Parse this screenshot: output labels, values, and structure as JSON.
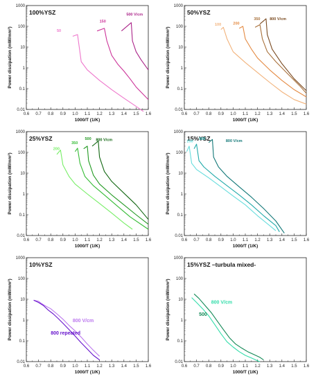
{
  "chart_data": [
    {
      "type": "line",
      "title": "100%YSZ",
      "xlabel": "1000/T (1/K)",
      "ylabel": "Power dissipation (mW/mm³)",
      "xlim": [
        0.6,
        1.6
      ],
      "ylim": [
        0.01,
        1000
      ],
      "yscale": "log",
      "xticks": [
        "0.6",
        "0.7",
        "0.8",
        "0.9",
        "1.0",
        "1.1",
        "1.2",
        "1.3",
        "1.4",
        "1.5",
        "1.6"
      ],
      "yticks": [
        "0.01",
        "0.1",
        "1",
        "10",
        "100",
        "1000"
      ],
      "colors": [
        "#ee77cc",
        "#cc3399",
        "#aa2288"
      ],
      "series": [
        {
          "name": "50",
          "x": [
            0.98,
            1.02,
            1.05,
            1.1,
            1.2,
            1.3,
            1.4,
            1.5,
            1.56
          ],
          "y": [
            33,
            40,
            2.0,
            0.8,
            0.25,
            0.09,
            0.035,
            0.014,
            0.008
          ]
        },
        {
          "name": "150",
          "x": [
            1.18,
            1.24,
            1.26,
            1.3,
            1.35,
            1.4,
            1.45,
            1.5,
            1.6
          ],
          "y": [
            60,
            80,
            20,
            4,
            1.5,
            0.7,
            0.3,
            0.12,
            0.03
          ]
        },
        {
          "name": "500 V/cm",
          "x": [
            1.38,
            1.46,
            1.47,
            1.5,
            1.54,
            1.6
          ],
          "y": [
            60,
            150,
            20,
            6,
            2.5,
            0.8
          ]
        }
      ],
      "annotations": [
        {
          "text": "50",
          "x": 0.85,
          "y": 55
        },
        {
          "text": "150",
          "x": 1.2,
          "y": 150
        },
        {
          "text": "500 V/cm",
          "x": 1.42,
          "y": 330
        }
      ]
    },
    {
      "type": "line",
      "title": "50%YSZ",
      "xlabel": "1000/T (1/K)",
      "ylabel": "Power dissipation (mW/mm³)",
      "xlim": [
        0.6,
        1.6
      ],
      "ylim": [
        0.01,
        1000
      ],
      "yscale": "log",
      "xticks": [
        "0.6",
        "0.7",
        "0.8",
        "0.9",
        "1.0",
        "1.1",
        "1.2",
        "1.3",
        "1.4",
        "1.5",
        "1.6"
      ],
      "yticks": [
        "0.01",
        "0.1",
        "1",
        "10",
        "100",
        "1000"
      ],
      "colors": [
        "#f2b27a",
        "#e48a42",
        "#a8703a",
        "#7a4a20"
      ],
      "series": [
        {
          "name": "100",
          "x": [
            0.9,
            0.92,
            0.95,
            1.0,
            1.1,
            1.2,
            1.3,
            1.4,
            1.5,
            1.6
          ],
          "y": [
            70,
            90,
            25,
            6,
            1.8,
            0.6,
            0.2,
            0.07,
            0.03,
            0.018
          ]
        },
        {
          "name": "200",
          "x": [
            1.05,
            1.08,
            1.1,
            1.15,
            1.2,
            1.3,
            1.4,
            1.5,
            1.6
          ],
          "y": [
            80,
            100,
            25,
            8,
            3,
            0.8,
            0.25,
            0.09,
            0.04
          ]
        },
        {
          "name": "350",
          "x": [
            1.18,
            1.22,
            1.24,
            1.28,
            1.35,
            1.45,
            1.55,
            1.6
          ],
          "y": [
            90,
            120,
            25,
            6,
            2,
            0.5,
            0.13,
            0.06
          ]
        },
        {
          "name": "800 V/cm",
          "x": [
            1.22,
            1.27,
            1.28,
            1.32,
            1.4,
            1.5,
            1.6
          ],
          "y": [
            130,
            230,
            40,
            8,
            1.6,
            0.3,
            0.08
          ]
        }
      ],
      "annotations": [
        {
          "text": "100",
          "x": 0.85,
          "y": 110
        },
        {
          "text": "200",
          "x": 1.0,
          "y": 120
        },
        {
          "text": "350",
          "x": 1.17,
          "y": 200
        },
        {
          "text": "800 V/cm",
          "x": 1.3,
          "y": 200
        }
      ]
    },
    {
      "type": "line",
      "title": "25%YSZ",
      "xlabel": "1000/T (1/K)",
      "ylabel": "Power dissipation (mW/mm³)",
      "xlim": [
        0.6,
        1.6
      ],
      "ylim": [
        0.01,
        1000
      ],
      "yscale": "log",
      "xticks": [
        "0.6",
        "0.7",
        "0.8",
        "0.9",
        "1.0",
        "1.1",
        "1.2",
        "1.3",
        "1.4",
        "1.5",
        "1.6"
      ],
      "yticks": [
        "0.01",
        "0.1",
        "1",
        "10",
        "100",
        "1000"
      ],
      "colors": [
        "#77ee66",
        "#33bb33",
        "#229922",
        "#116611"
      ],
      "series": [
        {
          "name": "200",
          "x": [
            0.85,
            0.88,
            0.9,
            0.95,
            1.0,
            1.1,
            1.2,
            1.3,
            1.4,
            1.47
          ],
          "y": [
            80,
            130,
            25,
            7,
            3,
            1,
            0.35,
            0.12,
            0.04,
            0.02
          ]
        },
        {
          "name": "350",
          "x": [
            1.0,
            1.02,
            1.04,
            1.08,
            1.15,
            1.25,
            1.35,
            1.45,
            1.6
          ],
          "y": [
            110,
            160,
            30,
            7,
            2.5,
            0.8,
            0.25,
            0.08,
            0.02
          ]
        },
        {
          "name": "500",
          "x": [
            1.07,
            1.1,
            1.11,
            1.15,
            1.2,
            1.3,
            1.4,
            1.5,
            1.6
          ],
          "y": [
            150,
            200,
            40,
            8,
            3,
            0.9,
            0.3,
            0.1,
            0.035
          ]
        },
        {
          "name": "800 V/cm",
          "x": [
            1.14,
            1.19,
            1.2,
            1.24,
            1.3,
            1.4,
            1.5,
            1.6
          ],
          "y": [
            200,
            350,
            60,
            12,
            4,
            1.1,
            0.3,
            0.06
          ]
        }
      ],
      "annotations": [
        {
          "text": "200",
          "x": 0.82,
          "y": 130
        },
        {
          "text": "350",
          "x": 0.97,
          "y": 250
        },
        {
          "text": "500",
          "x": 1.08,
          "y": 400
        },
        {
          "text": "800 V/cm",
          "x": 1.17,
          "y": 350
        }
      ]
    },
    {
      "type": "line",
      "title": "15%YSZ",
      "xlabel": "1000/T (1/K)",
      "ylabel": "Power dissipation (mW/mm³)",
      "xlim": [
        0.6,
        1.6
      ],
      "ylim": [
        0.01,
        1000
      ],
      "yscale": "log",
      "xticks": [
        "0.6",
        "0.7",
        "0.8",
        "0.9",
        "1.0",
        "1.1",
        "1.2",
        "1.3",
        "1.4",
        "1.5",
        "1.6"
      ],
      "yticks": [
        "0.01",
        "0.1",
        "1",
        "10",
        "100",
        "1000"
      ],
      "colors": [
        "#66dddd",
        "#22aaaa",
        "#117777"
      ],
      "series": [
        {
          "name": "250",
          "x": [
            0.62,
            0.64,
            0.66,
            0.7,
            0.8,
            0.9,
            1.0,
            1.1,
            1.2,
            1.3,
            1.35
          ],
          "y": [
            110,
            200,
            30,
            15,
            6,
            2.2,
            0.8,
            0.3,
            0.09,
            0.03,
            0.017
          ]
        },
        {
          "name": "500",
          "x": [
            0.68,
            0.7,
            0.72,
            0.76,
            0.85,
            0.95,
            1.05,
            1.15,
            1.25,
            1.35,
            1.38
          ],
          "y": [
            150,
            250,
            40,
            20,
            7,
            2.5,
            0.9,
            0.3,
            0.09,
            0.03,
            0.015
          ]
        },
        {
          "name": "800 V/cm",
          "x": [
            0.8,
            0.83,
            0.84,
            0.88,
            0.95,
            1.05,
            1.15,
            1.25,
            1.35,
            1.42
          ],
          "y": [
            300,
            420,
            60,
            20,
            7,
            2.2,
            0.7,
            0.2,
            0.05,
            0.013
          ]
        }
      ],
      "annotations": [
        {
          "text": "250",
          "x": 0.62,
          "y": 300
        },
        {
          "text": "500",
          "x": 0.72,
          "y": 400
        },
        {
          "text": "800 V/cm",
          "x": 0.94,
          "y": 320
        }
      ]
    },
    {
      "type": "line",
      "title": "10%YSZ",
      "xlabel": "1000/T (1/K)",
      "ylabel": "Power dissipation (mW/mm³)",
      "xlim": [
        0.6,
        1.6
      ],
      "ylim": [
        0.01,
        1000
      ],
      "yscale": "log",
      "xticks": [
        "0.6",
        "0.7",
        "0.8",
        "0.9",
        "1.0",
        "1.1",
        "1.2",
        "1.3",
        "1.4",
        "1.5",
        "1.6"
      ],
      "yticks": [
        "0.01",
        "0.1",
        "1",
        "10",
        "100",
        "1000"
      ],
      "colors": [
        "#bb77ee",
        "#6611cc"
      ],
      "series": [
        {
          "name": "800 V/cm",
          "x": [
            0.66,
            0.7,
            0.72,
            0.75,
            0.8,
            0.85,
            0.9,
            0.95,
            1.0,
            1.05,
            1.1,
            1.15,
            1.2
          ],
          "y": [
            9,
            8,
            6.5,
            5,
            3.5,
            2,
            1.1,
            0.55,
            0.3,
            0.15,
            0.07,
            0.035,
            0.018
          ]
        },
        {
          "name": "800 repeated",
          "x": [
            0.66,
            0.7,
            0.74,
            0.78,
            0.82,
            0.86,
            0.9,
            0.95,
            1.0,
            1.05,
            1.1,
            1.15,
            1.2
          ],
          "y": [
            9,
            7,
            5,
            3,
            2,
            1.2,
            0.7,
            0.35,
            0.17,
            0.08,
            0.04,
            0.02,
            0.012
          ]
        }
      ],
      "annotations": [
        {
          "text": "800 V/cm",
          "x": 0.98,
          "y": 0.8
        },
        {
          "text": "800 repeated",
          "x": 0.8,
          "y": 0.2
        }
      ]
    },
    {
      "type": "line",
      "title": "15%YSZ –turbula mixed-",
      "xlabel": "1000/T (1/K)",
      "ylabel": "Power dissipation (mW/mm³)",
      "xlim": [
        0.6,
        1.6
      ],
      "ylim": [
        0.01,
        1000
      ],
      "yscale": "log",
      "xticks": [
        "0.6",
        "0.7",
        "0.8",
        "0.9",
        "1.0",
        "1.1",
        "1.2",
        "1.3",
        "1.4",
        "1.5",
        "1.6"
      ],
      "yticks": [
        "0.01",
        "0.1",
        "1",
        "10",
        "100",
        "1000"
      ],
      "colors": [
        "#33ddaa",
        "#118855"
      ],
      "series": [
        {
          "name": "500",
          "x": [
            0.66,
            0.7,
            0.75,
            0.8,
            0.85,
            0.9,
            0.95,
            1.0,
            1.05,
            1.1,
            1.15,
            1.2,
            1.22
          ],
          "y": [
            12,
            7,
            3.5,
            1.6,
            0.6,
            0.22,
            0.09,
            0.05,
            0.03,
            0.02,
            0.015,
            0.011,
            0.01
          ]
        },
        {
          "name": "800 V/cm",
          "x": [
            0.68,
            0.72,
            0.77,
            0.82,
            0.87,
            0.92,
            0.97,
            1.02,
            1.07,
            1.12,
            1.17,
            1.22,
            1.25
          ],
          "y": [
            18,
            11,
            5,
            2.3,
            0.9,
            0.35,
            0.14,
            0.07,
            0.045,
            0.03,
            0.022,
            0.016,
            0.012
          ]
        }
      ],
      "annotations": [
        {
          "text": "800 V/cm",
          "x": 0.82,
          "y": 6
        },
        {
          "text": "500",
          "x": 0.72,
          "y": 1.6
        }
      ]
    }
  ]
}
